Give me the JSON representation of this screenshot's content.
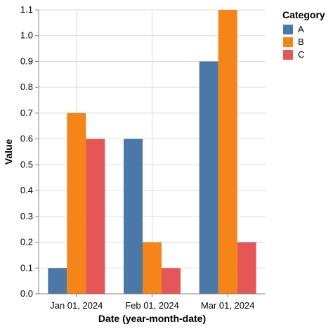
{
  "chart_data": {
    "type": "bar",
    "title": "",
    "xlabel": "Date (year-month-date)",
    "ylabel": "Value",
    "ylim": [
      0,
      1.1
    ],
    "yticks": [
      "0.0",
      "0.1",
      "0.2",
      "0.3",
      "0.4",
      "0.5",
      "0.6",
      "0.7",
      "0.8",
      "0.9",
      "1.0",
      "1.1"
    ],
    "categories": [
      "Jan 01, 2024",
      "Feb 01, 2024",
      "Mar 01, 2024"
    ],
    "grid": true,
    "legend": {
      "title": "Category",
      "placement": "right"
    },
    "series": [
      {
        "name": "A",
        "color": "#4c78a8",
        "values": [
          0.1,
          0.6,
          0.9
        ]
      },
      {
        "name": "B",
        "color": "#f58518",
        "values": [
          0.7,
          0.2,
          1.1
        ]
      },
      {
        "name": "C",
        "color": "#e45756",
        "values": [
          0.6,
          0.1,
          0.2
        ]
      }
    ]
  }
}
